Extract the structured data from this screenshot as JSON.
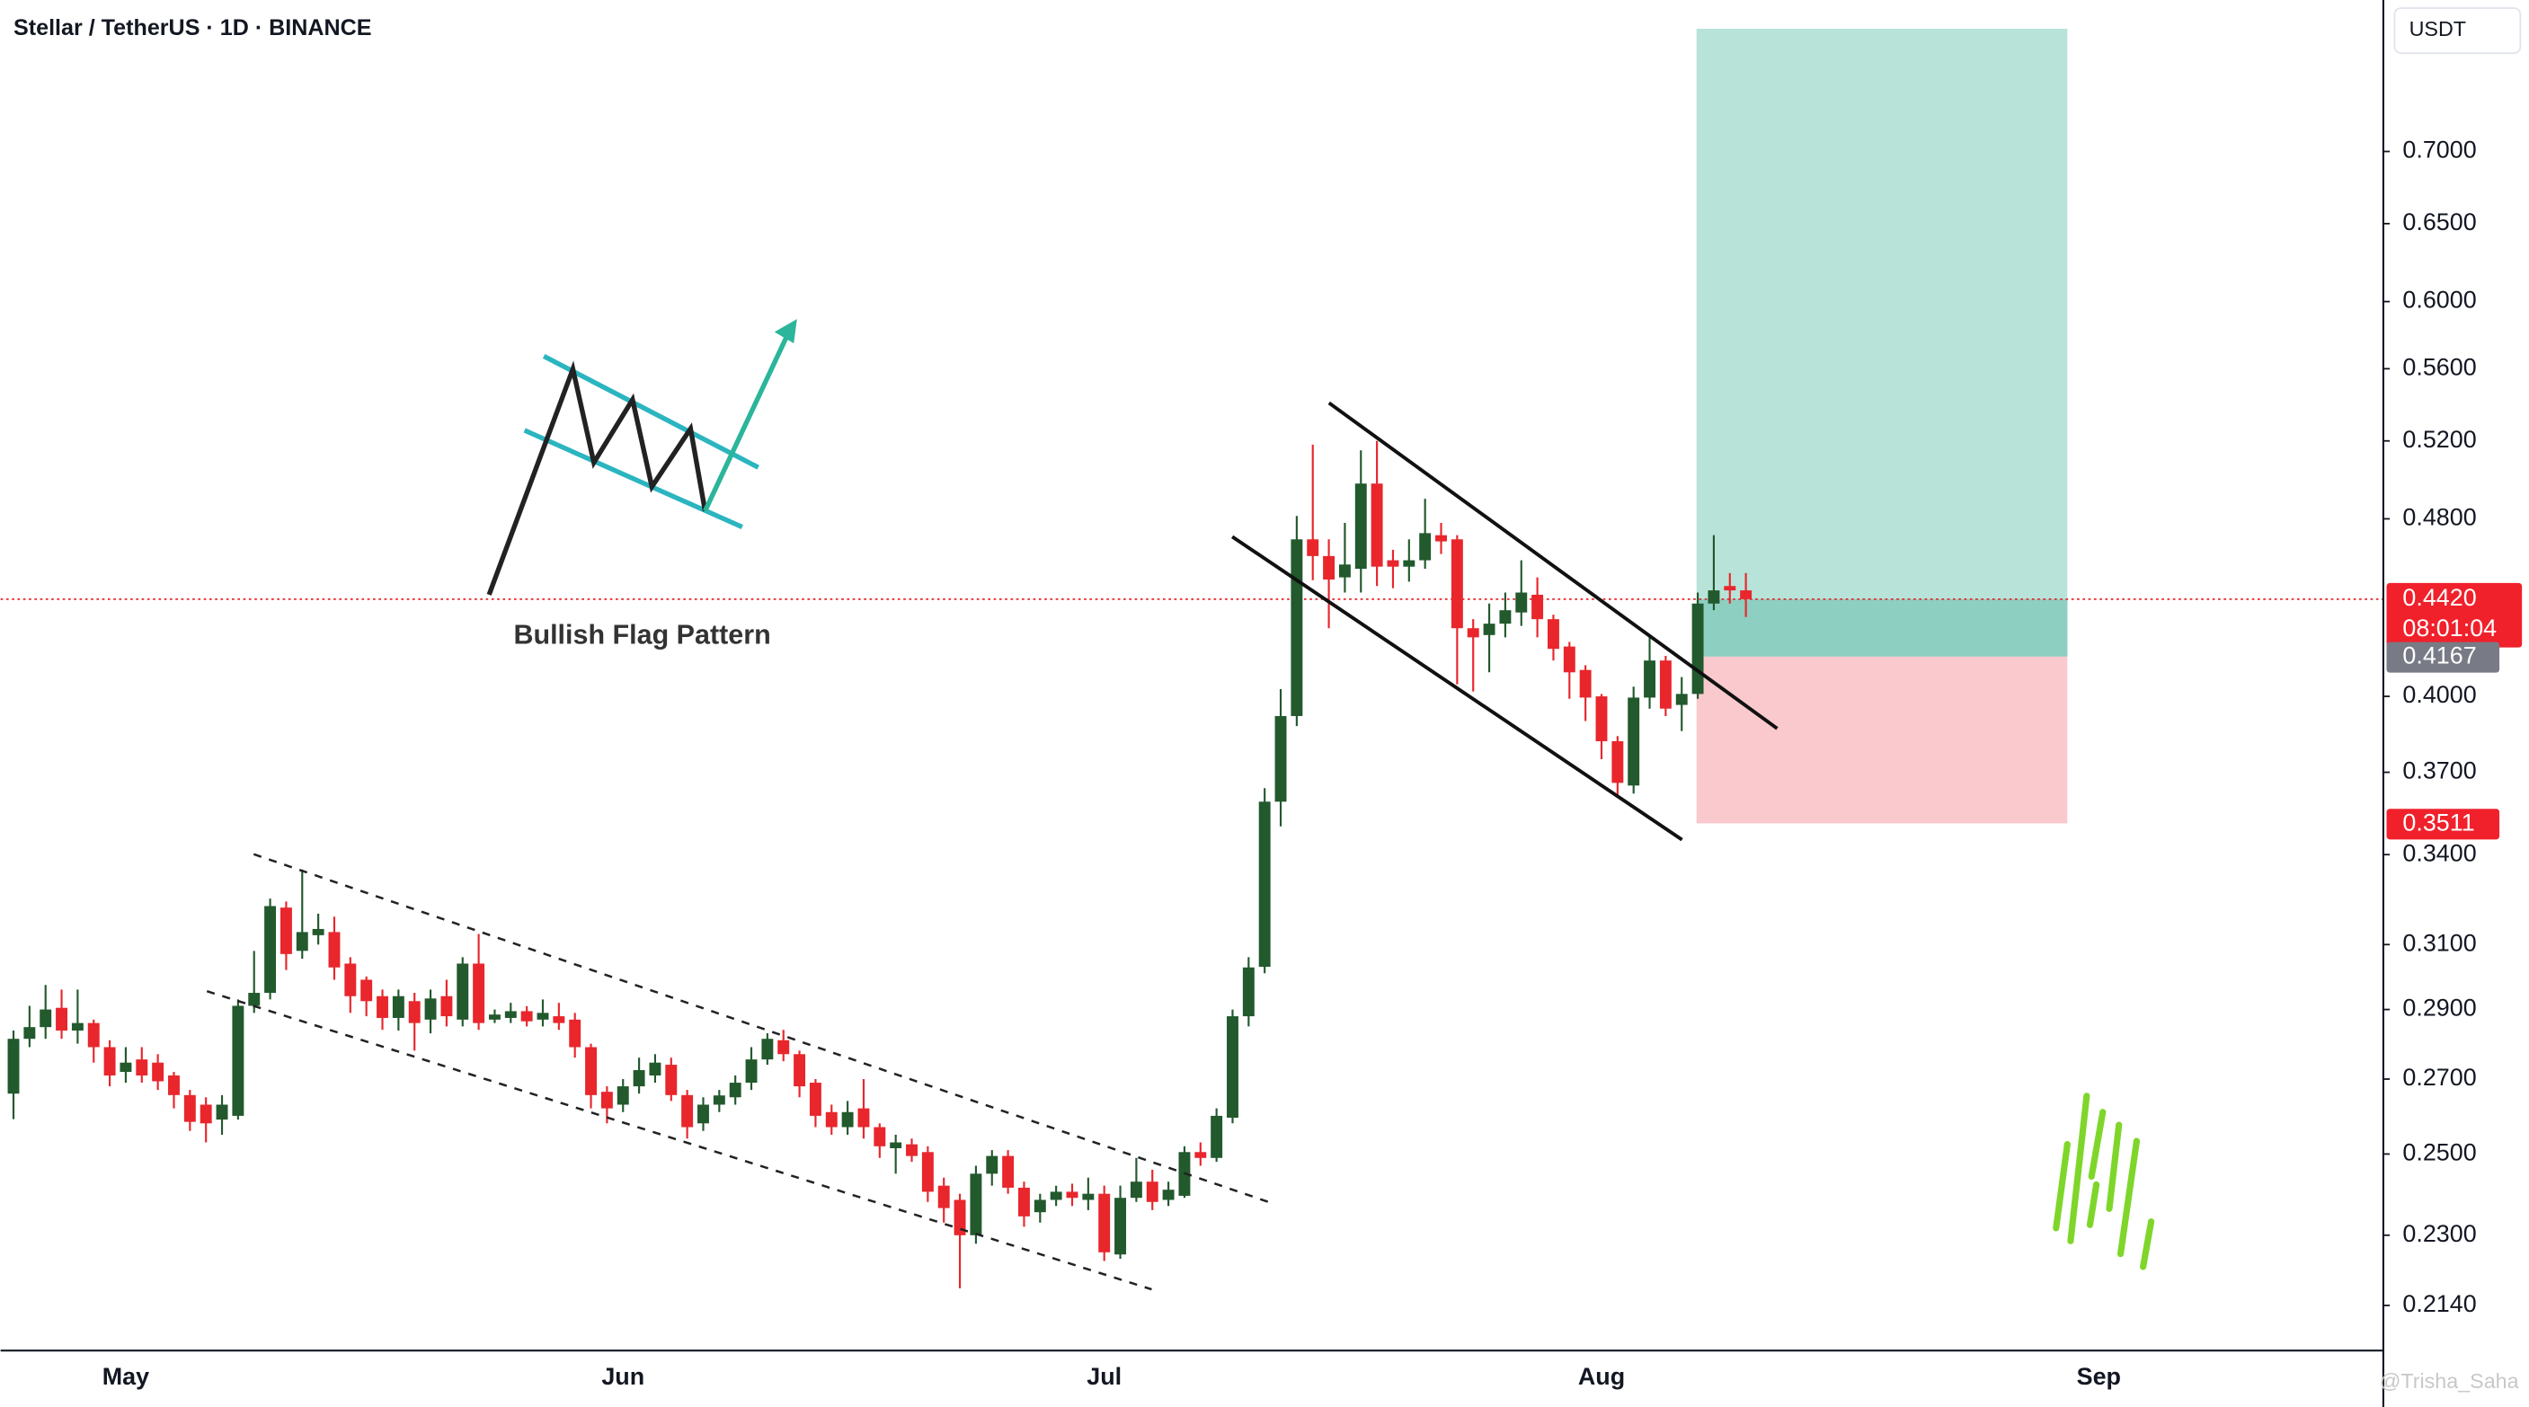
{
  "chart_data": {
    "type": "candlestick",
    "title": "Stellar / TetherUS · 1D · BINANCE",
    "y_axis_label": "USDT",
    "annotation": "Bullish Flag Pattern",
    "watermark": "@Trisha_Saha",
    "log_scale": true,
    "colors": {
      "up": "#22592d",
      "down": "#e8262c"
    },
    "ylim": [
      0.2043,
      0.8178
    ],
    "yticks": [
      {
        "value": 0.7,
        "label": "0.7000"
      },
      {
        "value": 0.65,
        "label": "0.6500"
      },
      {
        "value": 0.6,
        "label": "0.6000"
      },
      {
        "value": 0.56,
        "label": "0.5600"
      },
      {
        "value": 0.52,
        "label": "0.5200"
      },
      {
        "value": 0.48,
        "label": "0.4800"
      },
      {
        "value": 0.4,
        "label": "0.4000"
      },
      {
        "value": 0.37,
        "label": "0.3700"
      },
      {
        "value": 0.34,
        "label": "0.3400"
      },
      {
        "value": 0.31,
        "label": "0.3100"
      },
      {
        "value": 0.29,
        "label": "0.2900"
      },
      {
        "value": 0.27,
        "label": "0.2700"
      },
      {
        "value": 0.25,
        "label": "0.2500"
      },
      {
        "value": 0.23,
        "label": "0.2300"
      },
      {
        "value": 0.214,
        "label": "0.2140"
      }
    ],
    "current_price": {
      "value": 0.442,
      "label": "0.4420"
    },
    "countdown": "08:01:04",
    "position": {
      "target": 0.794,
      "entry": 0.4167,
      "stop": 0.3511
    },
    "categories": [
      null,
      null,
      null,
      null,
      null,
      null,
      null,
      "May",
      null,
      null,
      null,
      null,
      null,
      null,
      null,
      null,
      null,
      null,
      null,
      null,
      null,
      null,
      null,
      null,
      null,
      null,
      null,
      null,
      null,
      null,
      null,
      null,
      null,
      null,
      null,
      null,
      null,
      null,
      "Jun",
      null,
      null,
      null,
      null,
      null,
      null,
      null,
      null,
      null,
      null,
      null,
      null,
      null,
      null,
      null,
      null,
      null,
      null,
      null,
      null,
      null,
      null,
      null,
      null,
      null,
      null,
      null,
      null,
      null,
      "Jul",
      null,
      null,
      null,
      null,
      null,
      null,
      null,
      null,
      null,
      null,
      null,
      null,
      null,
      null,
      null,
      null,
      null,
      null,
      null,
      null,
      null,
      null,
      null,
      null,
      null,
      null,
      null,
      null,
      null,
      null,
      "Aug",
      null,
      null,
      null,
      null,
      null,
      null,
      null,
      null,
      null,
      null,
      null,
      null,
      null,
      null,
      null,
      null,
      null,
      null,
      null,
      null,
      null,
      null,
      null,
      null,
      null,
      null,
      null,
      null,
      null,
      null,
      "Sep"
    ],
    "open": [
      0.266,
      0.2814,
      0.2848,
      0.2905,
      0.2838,
      0.286,
      0.279,
      0.272,
      0.2755,
      0.2746,
      0.271,
      0.2656,
      0.263,
      0.259,
      0.26,
      0.2911,
      0.295,
      0.322,
      0.308,
      0.313,
      0.314,
      0.304,
      0.299,
      0.294,
      0.2875,
      0.2925,
      0.287,
      0.294,
      0.287,
      0.304,
      0.287,
      0.2875,
      0.2895,
      0.287,
      0.288,
      0.287,
      0.279,
      0.2665,
      0.263,
      0.268,
      0.271,
      0.274,
      0.2656,
      0.258,
      0.263,
      0.265,
      0.269,
      0.2755,
      0.281,
      0.277,
      0.269,
      0.261,
      0.257,
      0.262,
      0.257,
      0.2515,
      0.2525,
      0.2505,
      0.242,
      0.2385,
      0.23,
      0.245,
      0.2495,
      0.2415,
      0.2355,
      0.2385,
      0.2405,
      0.2385,
      0.24,
      0.2255,
      0.239,
      0.243,
      0.2385,
      0.2395,
      0.2505,
      0.249,
      0.2595,
      0.288,
      0.303,
      0.359,
      0.392,
      0.47,
      0.462,
      0.452,
      0.456,
      0.4977,
      0.46,
      0.457,
      0.46,
      0.472,
      0.47,
      0.429,
      0.426,
      0.431,
      0.436,
      0.444,
      0.433,
      0.421,
      0.411,
      0.4,
      0.382,
      0.365,
      0.3995,
      0.415,
      0.3965,
      0.401,
      0.44,
      0.448,
      0.446,
      null,
      null,
      null,
      null,
      null,
      null,
      null,
      null,
      null,
      null,
      null,
      null,
      null,
      null,
      null,
      null,
      null,
      null,
      null,
      null,
      null,
      null
    ],
    "high": [
      0.2838,
      0.2911,
      0.2974,
      0.296,
      0.296,
      0.287,
      0.281,
      0.279,
      0.279,
      0.277,
      0.272,
      0.267,
      0.265,
      0.2656,
      0.293,
      0.308,
      0.325,
      0.324,
      0.3348,
      0.32,
      0.319,
      0.306,
      0.3,
      0.296,
      0.296,
      0.295,
      0.296,
      0.299,
      0.306,
      0.3134,
      0.29,
      0.292,
      0.291,
      0.293,
      0.292,
      0.289,
      0.28,
      0.268,
      0.27,
      0.276,
      0.277,
      0.276,
      0.267,
      0.265,
      0.267,
      0.271,
      0.279,
      0.283,
      0.284,
      0.278,
      0.27,
      0.263,
      0.264,
      0.27,
      0.258,
      0.255,
      0.254,
      0.252,
      0.244,
      0.24,
      0.247,
      0.251,
      0.251,
      0.243,
      0.24,
      0.242,
      0.2425,
      0.244,
      0.242,
      0.242,
      0.249,
      0.246,
      0.243,
      0.252,
      0.253,
      0.262,
      0.29,
      0.306,
      0.364,
      0.403,
      0.4814,
      0.518,
      0.47,
      0.478,
      0.515,
      0.52,
      0.465,
      0.47,
      0.49,
      0.478,
      0.472,
      0.433,
      0.44,
      0.445,
      0.46,
      0.452,
      0.435,
      0.423,
      0.413,
      0.401,
      0.384,
      0.404,
      0.425,
      0.417,
      0.408,
      0.445,
      0.472,
      0.454,
      0.454,
      null,
      null,
      null,
      null,
      null,
      null,
      null,
      null,
      null,
      null,
      null,
      null,
      null,
      null,
      null,
      null,
      null,
      null,
      null,
      null,
      null,
      null
    ],
    "low": [
      0.2591,
      0.279,
      0.2814,
      0.2814,
      0.28,
      0.2746,
      0.268,
      0.269,
      0.269,
      0.267,
      0.262,
      0.256,
      0.253,
      0.255,
      0.259,
      0.289,
      0.293,
      0.302,
      0.3055,
      0.31,
      0.299,
      0.289,
      0.288,
      0.284,
      0.2838,
      0.278,
      0.283,
      0.285,
      0.285,
      0.284,
      0.286,
      0.286,
      0.285,
      0.285,
      0.284,
      0.276,
      0.262,
      0.258,
      0.261,
      0.266,
      0.269,
      0.264,
      0.254,
      0.256,
      0.261,
      0.263,
      0.267,
      0.274,
      0.275,
      0.265,
      0.257,
      0.255,
      0.255,
      0.254,
      0.249,
      0.245,
      0.248,
      0.238,
      0.233,
      0.2178,
      0.228,
      0.242,
      0.24,
      0.232,
      0.233,
      0.237,
      0.237,
      0.236,
      0.224,
      0.2245,
      0.238,
      0.236,
      0.237,
      0.239,
      0.247,
      0.248,
      0.258,
      0.285,
      0.301,
      0.35,
      0.388,
      0.4507,
      0.429,
      0.445,
      0.445,
      0.448,
      0.447,
      0.45,
      0.456,
      0.463,
      0.405,
      0.402,
      0.41,
      0.425,
      0.43,
      0.425,
      0.415,
      0.399,
      0.39,
      0.375,
      0.361,
      0.362,
      0.395,
      0.392,
      0.386,
      0.399,
      0.437,
      0.44,
      0.434,
      null,
      null,
      null,
      null,
      null,
      null,
      null,
      null,
      null,
      null,
      null,
      null,
      null,
      null,
      null,
      null,
      null,
      null,
      null,
      null,
      null,
      null
    ],
    "close": [
      0.2814,
      0.2848,
      0.29,
      0.2838,
      0.286,
      0.279,
      0.271,
      0.2746,
      0.271,
      0.2694,
      0.2656,
      0.2584,
      0.258,
      0.263,
      0.2911,
      0.295,
      0.3225,
      0.307,
      0.314,
      0.315,
      0.3028,
      0.294,
      0.2925,
      0.2875,
      0.294,
      0.286,
      0.2933,
      0.288,
      0.304,
      0.286,
      0.2885,
      0.2895,
      0.2865,
      0.289,
      0.286,
      0.279,
      0.2656,
      0.262,
      0.268,
      0.2725,
      0.2746,
      0.2656,
      0.257,
      0.263,
      0.2655,
      0.269,
      0.2755,
      0.2814,
      0.277,
      0.268,
      0.26,
      0.257,
      0.261,
      0.257,
      0.252,
      0.253,
      0.2495,
      0.2405,
      0.2365,
      0.23,
      0.245,
      0.2495,
      0.2415,
      0.2345,
      0.2385,
      0.2405,
      0.239,
      0.24,
      0.226,
      0.239,
      0.243,
      0.238,
      0.241,
      0.2505,
      0.249,
      0.26,
      0.288,
      0.3028,
      0.359,
      0.392,
      0.47,
      0.462,
      0.451,
      0.458,
      0.4977,
      0.457,
      0.457,
      0.46,
      0.473,
      0.469,
      0.429,
      0.425,
      0.431,
      0.437,
      0.445,
      0.433,
      0.42,
      0.41,
      0.3995,
      0.382,
      0.366,
      0.3995,
      0.415,
      0.395,
      0.401,
      0.44,
      0.446,
      0.446,
      0.442,
      null,
      null,
      null,
      null,
      null,
      null,
      null,
      null,
      null,
      null,
      null,
      null,
      null,
      null,
      null,
      null,
      null,
      null,
      null,
      null,
      null,
      null
    ]
  }
}
